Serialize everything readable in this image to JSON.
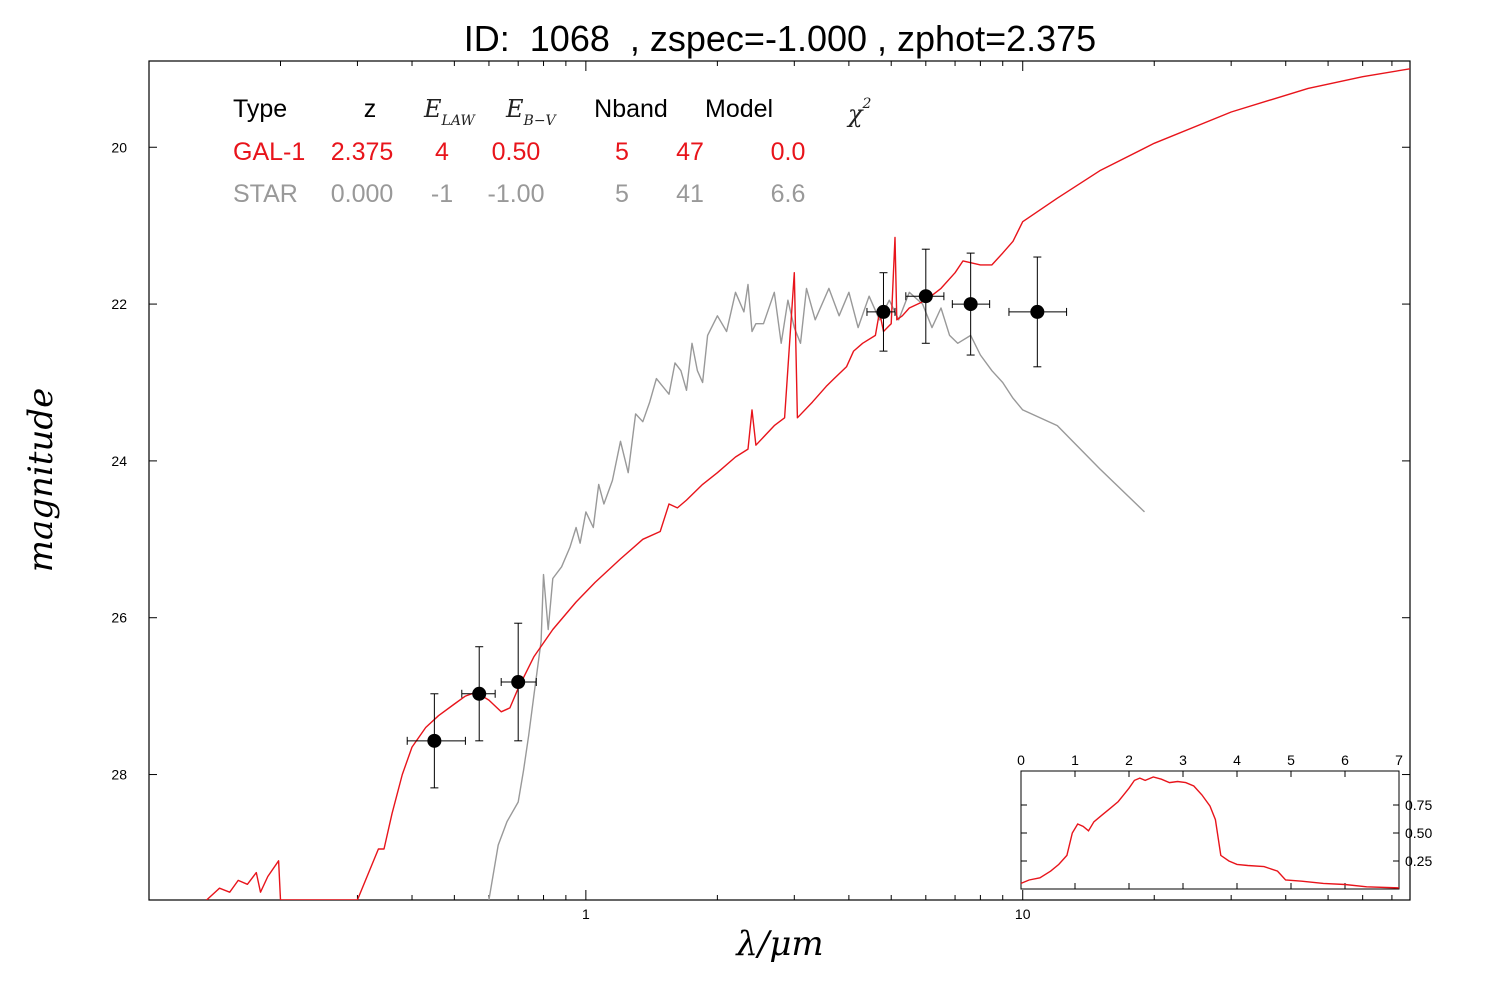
{
  "title": "ID:  1068  , zspec=-1.000 , zphot=2.375",
  "colors": {
    "galaxy": "#e8141b",
    "star": "#999999",
    "points": "#000000"
  },
  "table": {
    "headers": [
      "Type",
      "z",
      "E_LAW",
      "E_B-V",
      "Nband",
      "Model",
      "χ2"
    ],
    "rows": [
      {
        "color": "#e8141b",
        "cells": [
          "GAL-1",
          "2.375",
          "4",
          "0.50",
          "5",
          "47",
          "0.0"
        ]
      },
      {
        "color": "#999999",
        "cells": [
          "STAR",
          "0.000",
          "-1",
          "-1.00",
          "5",
          "41",
          "6.6"
        ]
      }
    ]
  },
  "chart_data": {
    "type": "line",
    "xlabel": "λ/μm",
    "ylabel": "magnitude",
    "xscale": "log",
    "xlim": [
      0.1,
      77
    ],
    "ylim": [
      29.6,
      18.9
    ],
    "x_ticks": [
      1,
      10
    ],
    "y_ticks": [
      20,
      22,
      24,
      26,
      28
    ],
    "series": [
      {
        "name": "GAL-1",
        "color": "#e8141b",
        "points": [
          [
            0.1355,
            29.6
          ],
          [
            0.145,
            29.45
          ],
          [
            0.153,
            29.5
          ],
          [
            0.16,
            29.35
          ],
          [
            0.168,
            29.4
          ],
          [
            0.176,
            29.25
          ],
          [
            0.18,
            29.5
          ],
          [
            0.187,
            29.3
          ],
          [
            0.198,
            29.1
          ],
          [
            0.2,
            29.6
          ],
          [
            0.3,
            29.6
          ],
          [
            0.335,
            28.95
          ],
          [
            0.345,
            28.95
          ],
          [
            0.36,
            28.5
          ],
          [
            0.38,
            28.0
          ],
          [
            0.4,
            27.65
          ],
          [
            0.43,
            27.4
          ],
          [
            0.46,
            27.25
          ],
          [
            0.5,
            27.1
          ],
          [
            0.53,
            27.0
          ],
          [
            0.56,
            26.95
          ],
          [
            0.6,
            27.05
          ],
          [
            0.64,
            27.2
          ],
          [
            0.67,
            27.15
          ],
          [
            0.7,
            26.9
          ],
          [
            0.76,
            26.5
          ],
          [
            0.84,
            26.15
          ],
          [
            0.95,
            25.8
          ],
          [
            1.05,
            25.55
          ],
          [
            1.2,
            25.25
          ],
          [
            1.35,
            25.0
          ],
          [
            1.48,
            24.9
          ],
          [
            1.55,
            24.55
          ],
          [
            1.62,
            24.6
          ],
          [
            1.7,
            24.5
          ],
          [
            1.85,
            24.3
          ],
          [
            2.0,
            24.15
          ],
          [
            2.2,
            23.95
          ],
          [
            2.35,
            23.85
          ],
          [
            2.4,
            23.35
          ],
          [
            2.45,
            23.8
          ],
          [
            2.7,
            23.55
          ],
          [
            2.85,
            23.45
          ],
          [
            3.0,
            21.6
          ],
          [
            3.05,
            23.45
          ],
          [
            3.3,
            23.25
          ],
          [
            3.55,
            23.05
          ],
          [
            3.7,
            22.95
          ],
          [
            3.95,
            22.8
          ],
          [
            4.1,
            22.6
          ],
          [
            4.3,
            22.5
          ],
          [
            4.6,
            22.4
          ],
          [
            4.7,
            22.1
          ],
          [
            4.8,
            22.35
          ],
          [
            5.0,
            22.25
          ],
          [
            5.1,
            21.15
          ],
          [
            5.15,
            22.2
          ],
          [
            5.3,
            22.15
          ],
          [
            5.5,
            22.05
          ],
          [
            6.0,
            21.95
          ],
          [
            6.5,
            21.8
          ],
          [
            7.0,
            21.6
          ],
          [
            7.3,
            21.45
          ],
          [
            8.0,
            21.5
          ],
          [
            8.5,
            21.5
          ],
          [
            9.0,
            21.35
          ],
          [
            9.5,
            21.2
          ],
          [
            10.0,
            20.95
          ],
          [
            12.0,
            20.65
          ],
          [
            15.0,
            20.3
          ],
          [
            20.0,
            19.95
          ],
          [
            30.0,
            19.55
          ],
          [
            45.0,
            19.25
          ],
          [
            60.0,
            19.1
          ],
          [
            77.0,
            19.0
          ]
        ]
      },
      {
        "name": "STAR",
        "color": "#999999",
        "points": [
          [
            0.6,
            29.6
          ],
          [
            0.63,
            28.9
          ],
          [
            0.66,
            28.6
          ],
          [
            0.7,
            28.35
          ],
          [
            0.72,
            27.95
          ],
          [
            0.74,
            27.5
          ],
          [
            0.76,
            27.0
          ],
          [
            0.79,
            26.3
          ],
          [
            0.8,
            25.45
          ],
          [
            0.82,
            26.15
          ],
          [
            0.84,
            25.5
          ],
          [
            0.88,
            25.35
          ],
          [
            0.92,
            25.1
          ],
          [
            0.95,
            24.85
          ],
          [
            0.97,
            25.05
          ],
          [
            1.0,
            24.65
          ],
          [
            1.04,
            24.85
          ],
          [
            1.07,
            24.3
          ],
          [
            1.1,
            24.55
          ],
          [
            1.15,
            24.25
          ],
          [
            1.2,
            23.75
          ],
          [
            1.25,
            24.15
          ],
          [
            1.3,
            23.4
          ],
          [
            1.35,
            23.5
          ],
          [
            1.4,
            23.25
          ],
          [
            1.45,
            22.95
          ],
          [
            1.55,
            23.15
          ],
          [
            1.6,
            22.75
          ],
          [
            1.65,
            22.85
          ],
          [
            1.7,
            23.1
          ],
          [
            1.75,
            22.5
          ],
          [
            1.8,
            22.85
          ],
          [
            1.85,
            23.0
          ],
          [
            1.9,
            22.4
          ],
          [
            2.0,
            22.15
          ],
          [
            2.1,
            22.35
          ],
          [
            2.2,
            21.85
          ],
          [
            2.3,
            22.1
          ],
          [
            2.35,
            21.75
          ],
          [
            2.4,
            22.35
          ],
          [
            2.45,
            22.25
          ],
          [
            2.55,
            22.25
          ],
          [
            2.7,
            21.85
          ],
          [
            2.8,
            22.5
          ],
          [
            2.9,
            21.95
          ],
          [
            3.0,
            22.3
          ],
          [
            3.1,
            22.5
          ],
          [
            3.2,
            21.8
          ],
          [
            3.35,
            22.2
          ],
          [
            3.6,
            21.8
          ],
          [
            3.8,
            22.15
          ],
          [
            4.0,
            21.85
          ],
          [
            4.2,
            22.3
          ],
          [
            4.45,
            21.9
          ],
          [
            4.7,
            22.2
          ],
          [
            4.95,
            21.95
          ],
          [
            5.2,
            22.2
          ],
          [
            5.5,
            21.85
          ],
          [
            5.9,
            22.0
          ],
          [
            6.2,
            22.3
          ],
          [
            6.5,
            22.05
          ],
          [
            6.8,
            22.4
          ],
          [
            7.1,
            22.5
          ],
          [
            7.6,
            22.4
          ],
          [
            8.0,
            22.65
          ],
          [
            8.5,
            22.85
          ],
          [
            9.0,
            23.0
          ],
          [
            9.5,
            23.2
          ],
          [
            10.0,
            23.35
          ],
          [
            12.0,
            23.55
          ],
          [
            15.0,
            24.1
          ],
          [
            19.0,
            24.65
          ]
        ]
      }
    ],
    "observations": [
      {
        "x": 0.45,
        "y": 27.57,
        "xerr": [
          0.39,
          0.53
        ],
        "yerr": [
          26.97,
          28.17
        ]
      },
      {
        "x": 0.57,
        "y": 26.97,
        "xerr": [
          0.52,
          0.62
        ],
        "yerr": [
          26.37,
          27.57
        ]
      },
      {
        "x": 0.7,
        "y": 26.82,
        "xerr": [
          0.64,
          0.77
        ],
        "yerr": [
          26.07,
          27.57
        ]
      },
      {
        "x": 4.8,
        "y": 22.1,
        "xerr": [
          4.4,
          5.1
        ],
        "yerr": [
          21.6,
          22.6
        ]
      },
      {
        "x": 6.0,
        "y": 21.9,
        "xerr": [
          5.4,
          6.6
        ],
        "yerr": [
          21.3,
          22.5
        ]
      },
      {
        "x": 7.6,
        "y": 22.0,
        "xerr": [
          6.9,
          8.4
        ],
        "yerr": [
          21.35,
          22.65
        ]
      },
      {
        "x": 10.8,
        "y": 22.1,
        "xerr": [
          9.3,
          12.6
        ],
        "yerr": [
          21.4,
          22.8
        ]
      }
    ],
    "inset": {
      "type": "line",
      "xlim": [
        0,
        7
      ],
      "ylim": [
        0,
        1
      ],
      "x_ticks": [
        0,
        1,
        2,
        3,
        4,
        5,
        6,
        7
      ],
      "y_ticks": [
        0.25,
        0.5,
        0.75
      ],
      "y_tick_labels": [
        "0.25",
        "0.50",
        "0.75"
      ],
      "color": "#e8141b",
      "points": [
        [
          0.0,
          0.05
        ],
        [
          0.15,
          0.08
        ],
        [
          0.35,
          0.1
        ],
        [
          0.55,
          0.16
        ],
        [
          0.7,
          0.22
        ],
        [
          0.85,
          0.3
        ],
        [
          0.95,
          0.5
        ],
        [
          1.05,
          0.58
        ],
        [
          1.15,
          0.56
        ],
        [
          1.25,
          0.52
        ],
        [
          1.35,
          0.6
        ],
        [
          1.5,
          0.66
        ],
        [
          1.65,
          0.72
        ],
        [
          1.8,
          0.78
        ],
        [
          1.9,
          0.84
        ],
        [
          2.0,
          0.9
        ],
        [
          2.1,
          0.97
        ],
        [
          2.2,
          0.99
        ],
        [
          2.3,
          0.97
        ],
        [
          2.45,
          1.0
        ],
        [
          2.6,
          0.98
        ],
        [
          2.75,
          0.95
        ],
        [
          2.9,
          0.96
        ],
        [
          3.05,
          0.95
        ],
        [
          3.2,
          0.92
        ],
        [
          3.35,
          0.84
        ],
        [
          3.5,
          0.74
        ],
        [
          3.6,
          0.62
        ],
        [
          3.7,
          0.3
        ],
        [
          3.85,
          0.25
        ],
        [
          4.0,
          0.22
        ],
        [
          4.2,
          0.21
        ],
        [
          4.5,
          0.2
        ],
        [
          4.75,
          0.16
        ],
        [
          4.9,
          0.08
        ],
        [
          5.2,
          0.07
        ],
        [
          5.6,
          0.05
        ],
        [
          6.0,
          0.04
        ],
        [
          6.4,
          0.02
        ],
        [
          7.0,
          0.01
        ]
      ]
    }
  }
}
